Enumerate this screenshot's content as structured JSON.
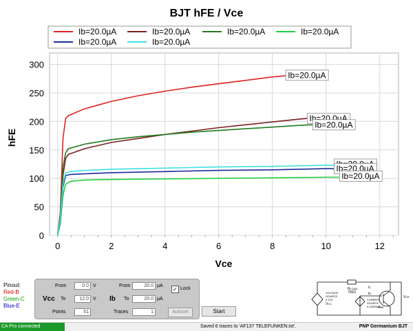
{
  "chart_data": {
    "type": "line",
    "title": "BJT hFE / Vce",
    "xlabel": "Vce",
    "ylabel": "hFE",
    "xlim": [
      -0.3,
      12.7
    ],
    "ylim": [
      0,
      320
    ],
    "xticks": [
      0,
      2,
      4,
      6,
      8,
      10,
      12
    ],
    "yticks": [
      0,
      50,
      100,
      150,
      200,
      250,
      300
    ],
    "grid": true,
    "legend_position": "top",
    "series": [
      {
        "name": "Ib=20.0µA",
        "color": "#e02020",
        "x": [
          0,
          0.1,
          0.2,
          0.3,
          0.4,
          1,
          2,
          3,
          4,
          5,
          6,
          7,
          8,
          8.5
        ],
        "y": [
          0,
          40,
          170,
          205,
          210,
          222,
          235,
          245,
          253,
          260,
          266,
          272,
          278,
          280
        ]
      },
      {
        "name": "Ib=20.0µA",
        "color": "#7a1e1e",
        "x": [
          0,
          0.1,
          0.2,
          0.3,
          0.4,
          1,
          2,
          3,
          4,
          5,
          6,
          7,
          8,
          9,
          9.5
        ],
        "y": [
          0,
          30,
          105,
          135,
          142,
          152,
          163,
          170,
          177,
          183,
          189,
          194,
          199,
          204,
          206
        ]
      },
      {
        "name": "Ib=20.0µA",
        "color": "#1e7a1e",
        "x": [
          0,
          0.1,
          0.2,
          0.3,
          0.4,
          1,
          2,
          3,
          4,
          5,
          6,
          7,
          8,
          9,
          10
        ],
        "y": [
          0,
          35,
          120,
          145,
          152,
          160,
          168,
          173,
          177,
          181,
          184,
          187,
          190,
          193,
          195
        ]
      },
      {
        "name": "Ib=20.0µA",
        "color": "#20d040",
        "x": [
          0,
          0.1,
          0.2,
          0.3,
          0.5,
          1,
          2,
          4,
          6,
          8,
          10,
          10.5
        ],
        "y": [
          0,
          20,
          70,
          90,
          95,
          97,
          98,
          99,
          100,
          101,
          102,
          102
        ]
      },
      {
        "name": "Ib=20.0µA",
        "color": "#1a2a9a",
        "x": [
          0,
          0.1,
          0.2,
          0.3,
          0.5,
          1,
          2,
          4,
          6,
          8,
          10,
          10.5
        ],
        "y": [
          0,
          25,
          85,
          105,
          107,
          108,
          110,
          112,
          114,
          115,
          117,
          117
        ]
      },
      {
        "name": "Ib=20.0µA",
        "color": "#40e0e0",
        "x": [
          0,
          0.1,
          0.2,
          0.3,
          0.5,
          1,
          2,
          4,
          6,
          8,
          10,
          10.3
        ],
        "y": [
          0,
          28,
          90,
          110,
          112,
          114,
          116,
          118,
          120,
          121,
          123,
          123
        ]
      }
    ],
    "annotations": [
      {
        "text": "Ib=20.0µA",
        "x": 8.5,
        "y": 281
      },
      {
        "text": "Ib=20.0µA",
        "x": 9.3,
        "y": 205
      },
      {
        "text": "Ib=20.0µA",
        "x": 9.5,
        "y": 194
      },
      {
        "text": "Ib=20.0µA",
        "x": 10.3,
        "y": 125
      },
      {
        "text": "Ib=20.0µA",
        "x": 10.3,
        "y": 117
      },
      {
        "text": "Ib=20.0µA",
        "x": 10.5,
        "y": 104
      }
    ]
  },
  "pinout": {
    "title": "Pinout:",
    "red": "Red-B",
    "green": "Green-C",
    "blue": "Blue-E",
    "red_color": "#d00000",
    "green_color": "#00a000",
    "blue_color": "#0000d0"
  },
  "controls": {
    "vcc": {
      "label": "Vcc",
      "from_label": "From",
      "from_value": "0.0",
      "from_unit": "V",
      "to_label": "To",
      "to_value": "12.0",
      "to_unit": "V",
      "points_label": "Points",
      "points_value": "51"
    },
    "ib": {
      "label": "Ib",
      "from_label": "From",
      "from_value": "20.0",
      "from_unit": "µA",
      "to_label": "To",
      "to_value": "20.0",
      "to_unit": "µA",
      "traces_label": "Traces",
      "traces_value": "1"
    },
    "lock_label": "Lock",
    "lock_checked": true,
    "lock_mark": "✓",
    "autoset_label": "Autoset",
    "start_label": "Start"
  },
  "schematic": {
    "rload": "R",
    "rload_sub": "LOAD",
    "rload_value": "700Ω",
    "vsrc_line1": "VOLTAGE",
    "vsrc_line2": "SOURCE",
    "vsrc_line3": "0-12V",
    "vsrc_label": "V",
    "vsrc_label_sub": "CC",
    "isrc_line1": "CURRENT",
    "isrc_line2": "SOURCE",
    "isrc_line3": "4-10000µA",
    "ic_label": "I",
    "ic_sub": "C",
    "ib_label": "I",
    "ib_sub": "B",
    "vbe_label": "V",
    "vbe_sub": "BE",
    "vce_label": "V",
    "vce_sub": "CE"
  },
  "status": {
    "connection": "CA Pro connected",
    "message": "Saved 6 traces to 'AF137 TELEFUNKEN.txt'.",
    "device": "PNP Germanium BJT",
    "connection_color": "#1b9a2a"
  }
}
